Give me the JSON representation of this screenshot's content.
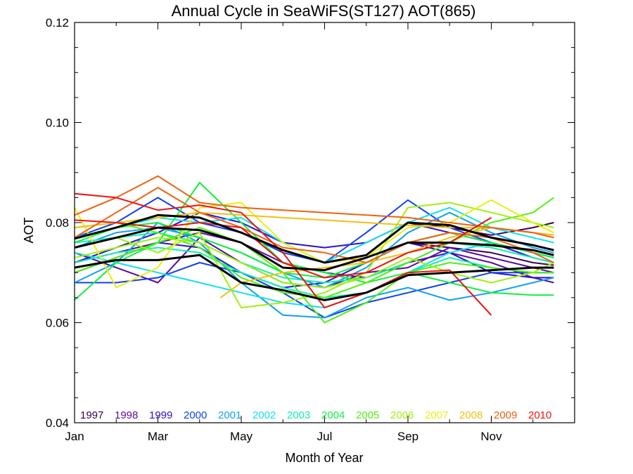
{
  "chart_data": {
    "type": "line",
    "title": "Annual Cycle in SeaWiFS(ST127) AOT(865)",
    "xlabel": "Month of Year",
    "ylabel": "AOT",
    "xlim": [
      1,
      13
    ],
    "ylim": [
      0.04,
      0.12
    ],
    "xticks": [
      {
        "value": 1,
        "label": "Jan"
      },
      {
        "value": 3,
        "label": "Mar"
      },
      {
        "value": 5,
        "label": "May"
      },
      {
        "value": 7,
        "label": "Jul"
      },
      {
        "value": 9,
        "label": "Sep"
      },
      {
        "value": 11,
        "label": "Nov"
      }
    ],
    "yticks": [
      {
        "value": 0.04,
        "label": "0.04"
      },
      {
        "value": 0.06,
        "label": "0.06"
      },
      {
        "value": 0.08,
        "label": "0.08"
      },
      {
        "value": 0.1,
        "label": "0.10"
      },
      {
        "value": 0.12,
        "label": "0.12"
      }
    ],
    "grid": false,
    "legend_position": "bottom-inside",
    "series": [
      {
        "name": "1997",
        "color": "#3a0050",
        "lines": [
          {
            "x": [
              9,
              10,
              11,
              12,
              12.5
            ],
            "y": [
              0.076,
              0.075,
              0.074,
              0.072,
              0.0715
            ]
          },
          {
            "x": [
              9,
              10,
              11,
              12,
              12.5
            ],
            "y": [
              0.08,
              0.079,
              0.0775,
              0.079,
              0.08
            ]
          }
        ]
      },
      {
        "name": "1998",
        "color": "#5a0aa0",
        "lines": [
          {
            "x": [
              1,
              2,
              3,
              4,
              5,
              6,
              7,
              8,
              9,
              10,
              11,
              12,
              12.5
            ],
            "y": [
              0.072,
              0.074,
              0.076,
              0.078,
              0.076,
              0.072,
              0.07,
              0.069,
              0.072,
              0.074,
              0.072,
              0.069,
              0.068
            ]
          },
          {
            "x": [
              1,
              2,
              3,
              4,
              5,
              6,
              7,
              8,
              9,
              10,
              11,
              12,
              12.5
            ],
            "y": [
              0.074,
              0.071,
              0.068,
              0.077,
              0.072,
              0.068,
              0.067,
              0.07,
              0.071,
              0.075,
              0.073,
              0.071,
              0.07
            ]
          }
        ]
      },
      {
        "name": "1999",
        "color": "#2a10d0",
        "lines": [
          {
            "x": [
              1,
              2,
              3,
              4,
              5,
              6,
              7,
              8,
              9,
              10,
              11,
              12,
              12.5
            ],
            "y": [
              0.072,
              0.075,
              0.078,
              0.082,
              0.08,
              0.076,
              0.075,
              0.076,
              0.08,
              0.078,
              0.076,
              0.073,
              0.072
            ]
          },
          {
            "x": [
              1,
              2,
              3,
              4,
              5,
              6,
              7,
              8,
              9,
              10,
              11,
              12,
              12.5
            ],
            "y": [
              0.07,
              0.073,
              0.076,
              0.075,
              0.07,
              0.067,
              0.068,
              0.072,
              0.076,
              0.074,
              0.07,
              0.069,
              0.069
            ]
          }
        ]
      },
      {
        "name": "2000",
        "color": "#1040f0",
        "lines": [
          {
            "x": [
              1,
              2,
              3,
              4,
              5,
              6,
              7,
              8,
              9,
              10,
              11,
              12,
              12.5
            ],
            "y": [
              0.077,
              0.08,
              0.085,
              0.08,
              0.078,
              0.074,
              0.072,
              0.078,
              0.0845,
              0.079,
              0.076,
              0.074,
              0.073
            ]
          },
          {
            "x": [
              1,
              2,
              3,
              4,
              5,
              6,
              7,
              8,
              9,
              10,
              11,
              12,
              12.5
            ],
            "y": [
              0.068,
              0.068,
              0.069,
              0.072,
              0.07,
              0.066,
              0.061,
              0.064,
              0.066,
              0.068,
              0.07,
              0.07,
              0.07
            ]
          }
        ]
      },
      {
        "name": "2001",
        "color": "#10a0f0",
        "lines": [
          {
            "x": [
              1,
              2,
              3,
              4,
              5,
              6,
              7,
              8,
              9,
              10,
              11,
              12,
              12.5
            ],
            "y": [
              0.068,
              0.072,
              0.08,
              0.076,
              0.068,
              0.0615,
              0.061,
              0.065,
              0.067,
              0.0645,
              0.066,
              0.068,
              0.069
            ]
          },
          {
            "x": [
              1,
              2,
              3,
              4,
              5,
              6,
              7,
              8,
              9,
              10,
              11,
              12,
              12.5
            ],
            "y": [
              0.075,
              0.078,
              0.079,
              0.077,
              0.074,
              0.07,
              0.067,
              0.071,
              0.078,
              0.082,
              0.078,
              0.075,
              0.074
            ]
          }
        ]
      },
      {
        "name": "2002",
        "color": "#10e0f0",
        "lines": [
          {
            "x": [
              1,
              2,
              3,
              4,
              5,
              6,
              7,
              8,
              9,
              10,
              11,
              12,
              12.5
            ],
            "y": [
              0.074,
              0.072,
              0.07,
              0.068,
              0.066,
              0.064,
              0.063,
              0.066,
              0.07,
              0.074,
              0.076,
              0.074,
              0.072
            ]
          },
          {
            "x": [
              1,
              2,
              3,
              4,
              5,
              6,
              7,
              8,
              9,
              10,
              11,
              12,
              12.5
            ],
            "y": [
              0.077,
              0.079,
              0.081,
              0.08,
              0.081,
              0.076,
              0.072,
              0.076,
              0.08,
              0.083,
              0.079,
              0.077,
              0.076
            ]
          }
        ]
      },
      {
        "name": "2003",
        "color": "#10f0b0",
        "lines": [
          {
            "x": [
              1,
              2,
              3,
              4,
              5,
              6,
              7,
              8,
              9,
              10,
              11,
              12,
              12.5
            ],
            "y": [
              0.076,
              0.077,
              0.078,
              0.076,
              0.072,
              0.069,
              0.068,
              0.069,
              0.072,
              0.076,
              0.075,
              0.073,
              0.072
            ]
          },
          {
            "x": [
              1,
              2,
              3,
              4,
              5,
              6,
              7,
              8,
              9,
              10,
              11,
              12,
              12.5
            ],
            "y": [
              0.072,
              0.074,
              0.075,
              0.074,
              0.07,
              0.067,
              0.065,
              0.066,
              0.07,
              0.073,
              0.071,
              0.07,
              0.07
            ]
          }
        ]
      },
      {
        "name": "2004",
        "color": "#10f040",
        "lines": [
          {
            "x": [
              1,
              2,
              3,
              4,
              5,
              6,
              7,
              8,
              9,
              10,
              11,
              12,
              12.5
            ],
            "y": [
              0.0645,
              0.072,
              0.076,
              0.088,
              0.08,
              0.072,
              0.07,
              0.068,
              0.07,
              0.068,
              0.066,
              0.0655,
              0.0655
            ]
          },
          {
            "x": [
              1,
              2,
              3,
              4,
              5,
              6,
              7,
              8,
              9,
              10,
              11,
              12,
              12.5
            ],
            "y": [
              0.076,
              0.079,
              0.08,
              0.077,
              0.074,
              0.07,
              0.069,
              0.072,
              0.076,
              0.078,
              0.076,
              0.074,
              0.073
            ]
          }
        ]
      },
      {
        "name": "2005",
        "color": "#50f010",
        "lines": [
          {
            "x": [
              1,
              2,
              3,
              4,
              5,
              6,
              7,
              8,
              9,
              10,
              11,
              12,
              12.5
            ],
            "y": [
              0.07,
              0.073,
              0.076,
              0.079,
              0.076,
              0.07,
              0.06,
              0.064,
              0.07,
              0.072,
              0.071,
              0.07,
              0.07
            ]
          },
          {
            "x": [
              1,
              2,
              3,
              4,
              5,
              6,
              7,
              8,
              9,
              10,
              11,
              12,
              12.5
            ],
            "y": [
              0.079,
              0.08,
              0.078,
              0.075,
              0.069,
              0.066,
              0.065,
              0.068,
              0.072,
              0.076,
              0.08,
              0.082,
              0.085
            ]
          }
        ]
      },
      {
        "name": "2006",
        "color": "#a0f010",
        "lines": [
          {
            "x": [
              1,
              2,
              3,
              4,
              5,
              6,
              7,
              8,
              9,
              10,
              11,
              12,
              12.5
            ],
            "y": [
              0.075,
              0.077,
              0.074,
              0.078,
              0.063,
              0.064,
              0.066,
              0.07,
              0.083,
              0.084,
              0.082,
              0.08,
              0.079
            ]
          },
          {
            "x": [
              1,
              2,
              3,
              4,
              5,
              6,
              7,
              8,
              9,
              10,
              11,
              12,
              12.5
            ],
            "y": [
              0.073,
              0.075,
              0.077,
              0.076,
              0.072,
              0.068,
              0.067,
              0.069,
              0.073,
              0.07,
              0.068,
              0.07,
              0.072
            ]
          }
        ]
      },
      {
        "name": "2007",
        "color": "#e8f010",
        "lines": [
          {
            "x": [
              1,
              2,
              3,
              4,
              5,
              6,
              7,
              8,
              9,
              10,
              11,
              12,
              12.5
            ],
            "y": [
              0.083,
              0.067,
              0.071,
              0.083,
              0.084,
              0.076,
              0.072,
              0.073,
              0.079,
              0.08,
              0.0845,
              0.08,
              0.078
            ]
          }
        ]
      },
      {
        "name": "2008",
        "color": "#f0c010",
        "lines": [
          {
            "x": [
              4.5,
              5,
              6,
              7,
              8,
              9,
              10,
              11,
              12,
              12.5
            ],
            "y": [
              0.065,
              0.068,
              0.07,
              0.071,
              0.072,
              0.074,
              0.077,
              0.079,
              0.078,
              0.0775
            ]
          },
          {
            "x": [
              1,
              2,
              3,
              4,
              5,
              6,
              7,
              8,
              9,
              10,
              11,
              12,
              12.5
            ],
            "y": [
              0.079,
              0.08,
              0.081,
              0.082,
              0.0815,
              0.081,
              0.0805,
              0.08,
              0.0795,
              0.079,
              0.079,
              0.078,
              0.0775
            ]
          }
        ]
      },
      {
        "name": "2009",
        "color": "#f06010",
        "lines": [
          {
            "x": [
              1,
              2,
              3,
              4,
              5,
              6,
              7,
              8,
              9,
              10,
              11,
              12,
              12.5
            ],
            "y": [
              0.0815,
              0.085,
              0.0893,
              0.084,
              0.083,
              0.0825,
              0.082,
              0.0815,
              0.081,
              0.08,
              0.079,
              0.078,
              0.077
            ]
          },
          {
            "x": [
              1,
              2,
              3,
              4,
              5,
              6,
              7,
              8,
              9,
              10,
              11,
              12,
              12.5
            ],
            "y": [
              0.077,
              0.082,
              0.087,
              0.082,
              0.079,
              0.075,
              0.074,
              0.072,
              0.076,
              0.078,
              0.077,
              0.074,
              0.072
            ]
          }
        ]
      },
      {
        "name": "2010",
        "color": "#f01010",
        "lines": [
          {
            "x": [
              1,
              2,
              3,
              4,
              5,
              6,
              7,
              8,
              9,
              10,
              11
            ],
            "y": [
              0.0858,
              0.085,
              0.0825,
              0.0835,
              0.082,
              0.074,
              0.063,
              0.066,
              0.07,
              0.0705,
              0.0615
            ]
          },
          {
            "x": [
              1,
              2,
              3,
              4,
              5,
              6,
              7,
              8,
              9,
              10,
              11
            ],
            "y": [
              0.0805,
              0.08,
              0.079,
              0.08,
              0.079,
              0.072,
              0.069,
              0.07,
              0.074,
              0.076,
              0.081
            ]
          }
        ]
      }
    ],
    "mean_lines": {
      "color": "#000000",
      "lines": [
        {
          "x": [
            1,
            2,
            3,
            4,
            5,
            6,
            7,
            8,
            9,
            10,
            11,
            12,
            12.5
          ],
          "y": [
            0.0768,
            0.079,
            0.0815,
            0.081,
            0.078,
            0.0745,
            0.072,
            0.0735,
            0.08,
            0.0795,
            0.077,
            0.0755,
            0.0745
          ]
        },
        {
          "x": [
            1,
            2,
            3,
            4,
            5,
            6,
            7,
            8,
            9,
            10,
            11,
            12,
            12.5
          ],
          "y": [
            0.075,
            0.077,
            0.079,
            0.0785,
            0.076,
            0.071,
            0.0705,
            0.073,
            0.076,
            0.076,
            0.0755,
            0.0745,
            0.0735
          ]
        },
        {
          "x": [
            1,
            2,
            3,
            4,
            5,
            6,
            7,
            8,
            9,
            10,
            11,
            12,
            12.5
          ],
          "y": [
            0.071,
            0.0725,
            0.0725,
            0.0735,
            0.068,
            0.0665,
            0.0645,
            0.066,
            0.0695,
            0.07,
            0.0705,
            0.071,
            0.071
          ]
        }
      ]
    }
  }
}
